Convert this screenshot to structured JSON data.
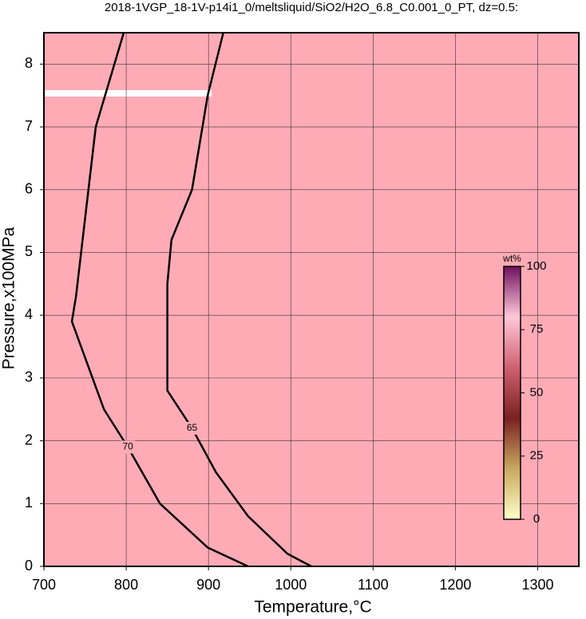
{
  "chart_data": {
    "type": "contour",
    "title": "2018-1VGP_18-1V-p14i1_0/meltsliquid/SiO2/H2O_6.8_C0.001_0_PT, dz=0.5:",
    "x_label": "Temperature,°C",
    "y_label": "Pressure,x100MPa",
    "xlim": [
      700,
      1350
    ],
    "ylim": [
      0,
      8.5
    ],
    "xticks": [
      700,
      800,
      900,
      1000,
      1100,
      1200,
      1300
    ],
    "yticks": [
      0,
      1,
      2,
      3,
      4,
      5,
      6,
      7,
      8
    ],
    "grid": true,
    "background_color": "#ffabb6",
    "contours": [
      {
        "level": 70,
        "color": "#000000",
        "x": [
          797,
          763,
          739,
          734,
          773,
          802,
          841,
          899,
          948
        ],
        "y": [
          8.5,
          7.0,
          4.3,
          3.9,
          2.5,
          1.9,
          1.0,
          0.3,
          0
        ]
      },
      {
        "level": 65,
        "color": "#000000",
        "x": [
          918,
          899,
          880,
          855,
          850,
          850,
          880,
          909,
          948,
          996,
          1025
        ],
        "y": [
          8.5,
          7.5,
          6.0,
          5.2,
          4.5,
          2.8,
          2.2,
          1.5,
          0.8,
          0.2,
          0
        ]
      }
    ],
    "colorbar": {
      "label": "wt%",
      "lim": [
        0,
        100
      ],
      "ticks": [
        0,
        25,
        50,
        75,
        100
      ]
    }
  }
}
